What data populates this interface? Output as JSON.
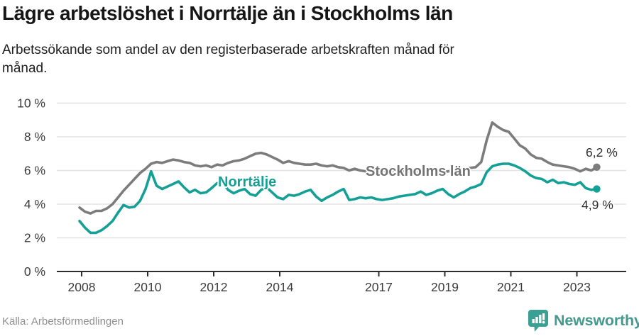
{
  "page": {
    "title": "Lägre arbetslöshet i Norrtälje än i Stockholms län",
    "subtitle": "Arbetssökande som andel av den registerbaserade arbetskraften månad för månad.",
    "source": "Källa: Arbetsförmedlingen",
    "brand": "Newsworthy"
  },
  "colors": {
    "norrtalje": "#14a096",
    "stockholm": "#7c7c7c",
    "grid": "#e3e3e3",
    "axis": "#2d2d2d",
    "tick_text": "#3c3c3c",
    "brand_teal": "#3aa093"
  },
  "chart_data": {
    "type": "line",
    "title": "Lägre arbetslöshet i Norrtälje än i Stockholms län",
    "subtitle": "Arbetssökande som andel av den registerbaserade arbetskraften månad för månad.",
    "unit": "%",
    "x_start": 2008.0,
    "x_step_years": 0.1666667,
    "x_end": 2023.67,
    "grid": true,
    "y_axis": {
      "range": [
        0,
        10
      ],
      "ticks": [
        0,
        2,
        4,
        6,
        8,
        10
      ],
      "labels": [
        "0 %",
        "2 %",
        "4 %",
        "6 %",
        "8 %",
        "10 %"
      ]
    },
    "x_axis": {
      "ticks": [
        2008,
        2010,
        2012,
        2014,
        2017,
        2019,
        2021,
        2023
      ],
      "labels": [
        "2008",
        "2010",
        "2012",
        "2014",
        "2017",
        "2019",
        "2021",
        "2023"
      ]
    },
    "series": [
      {
        "name": "Stockholms län",
        "color": "#7c7c7c",
        "end_label": "6,2 %",
        "end_value": 6.2,
        "values": [
          3.8,
          3.55,
          3.45,
          3.6,
          3.6,
          3.75,
          4.0,
          4.4,
          4.8,
          5.15,
          5.5,
          5.85,
          6.1,
          6.4,
          6.5,
          6.45,
          6.55,
          6.65,
          6.6,
          6.5,
          6.45,
          6.3,
          6.25,
          6.3,
          6.2,
          6.35,
          6.3,
          6.45,
          6.55,
          6.6,
          6.7,
          6.85,
          7.0,
          7.05,
          6.95,
          6.8,
          6.65,
          6.45,
          6.55,
          6.45,
          6.4,
          6.35,
          6.35,
          6.4,
          6.3,
          6.25,
          6.3,
          6.2,
          6.15,
          6.0,
          6.1,
          6.0,
          5.95,
          6.0,
          6.05,
          6.0,
          5.95,
          6.0,
          5.95,
          5.95,
          5.9,
          5.95,
          5.9,
          5.85,
          5.9,
          5.95,
          5.9,
          5.95,
          6.0,
          6.05,
          6.1,
          6.15,
          6.2,
          6.5,
          7.8,
          8.85,
          8.6,
          8.4,
          8.3,
          7.9,
          7.5,
          7.3,
          6.95,
          6.75,
          6.7,
          6.5,
          6.35,
          6.3,
          6.25,
          6.2,
          6.1,
          5.95,
          6.1,
          6.0,
          6.2
        ]
      },
      {
        "name": "Norrtälje",
        "color": "#14a096",
        "end_label": "4,9 %",
        "end_value": 4.9,
        "values": [
          3.0,
          2.6,
          2.3,
          2.3,
          2.45,
          2.7,
          3.0,
          3.5,
          3.95,
          3.8,
          3.85,
          4.2,
          4.9,
          5.95,
          5.1,
          4.9,
          5.05,
          5.2,
          5.35,
          5.0,
          4.7,
          4.85,
          4.65,
          4.7,
          4.95,
          5.25,
          5.3,
          4.85,
          4.65,
          4.8,
          4.9,
          4.6,
          4.5,
          4.85,
          5.0,
          4.7,
          4.4,
          4.3,
          4.55,
          4.5,
          4.6,
          4.75,
          4.85,
          4.45,
          4.2,
          4.4,
          4.55,
          4.75,
          4.9,
          4.25,
          4.3,
          4.4,
          4.35,
          4.4,
          4.3,
          4.25,
          4.3,
          4.35,
          4.45,
          4.5,
          4.55,
          4.6,
          4.75,
          4.55,
          4.65,
          4.8,
          4.9,
          4.6,
          4.4,
          4.6,
          4.75,
          4.95,
          5.05,
          5.2,
          5.9,
          6.25,
          6.35,
          6.4,
          6.4,
          6.3,
          6.15,
          5.95,
          5.7,
          5.55,
          5.5,
          5.3,
          5.45,
          5.25,
          5.3,
          5.2,
          5.15,
          5.3,
          4.95,
          4.85,
          4.9
        ]
      }
    ]
  }
}
